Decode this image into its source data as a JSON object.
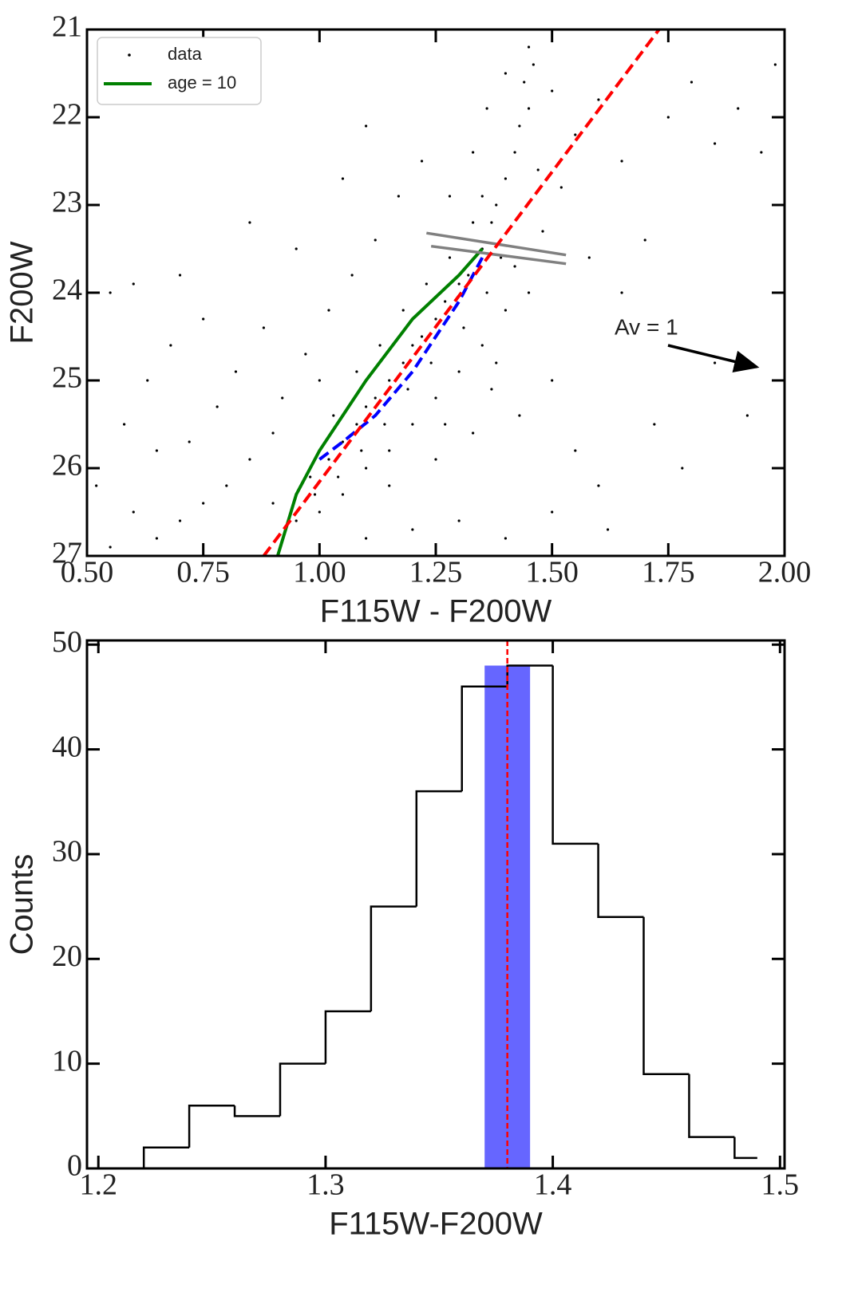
{
  "chart_data": [
    {
      "type": "scatter",
      "xlabel": "F115W - F200W",
      "ylabel": "F200W",
      "xlim": [
        0.5,
        2.0
      ],
      "ylim": [
        27,
        21
      ],
      "xticks": [
        {
          "value": 0.5,
          "label": "0.50"
        },
        {
          "value": 0.75,
          "label": "0.75"
        },
        {
          "value": 1.0,
          "label": "1.00"
        },
        {
          "value": 1.25,
          "label": "1.25"
        },
        {
          "value": 1.5,
          "label": "1.50"
        },
        {
          "value": 1.75,
          "label": "1.75"
        },
        {
          "value": 2.0,
          "label": "2.00"
        }
      ],
      "yticks": [
        21,
        22,
        23,
        24,
        25,
        26,
        27
      ],
      "series": [
        {
          "name": "data",
          "color": "#000000",
          "x": [
            0.98,
            1.02,
            1.05,
            1.08,
            1.1,
            1.12,
            1.15,
            1.18,
            1.2,
            1.22,
            1.25,
            1.27,
            1.3,
            1.32,
            1.35,
            1.37,
            1.38,
            1.4,
            1.42,
            1.43,
            1.45,
            1.44,
            1.46,
            0.9,
            0.95,
            1.0,
            1.05,
            1.1,
            1.15,
            1.2,
            1.25,
            1.3,
            1.35,
            1.4,
            1.45,
            1.5,
            1.55,
            1.6,
            1.48,
            1.52,
            0.85,
            0.8,
            0.75,
            0.7,
            0.65,
            0.6,
            0.55,
            0.52,
            0.58,
            0.63,
            0.68,
            0.72,
            0.78,
            0.82,
            0.88,
            0.92,
            0.97,
            1.02,
            1.07,
            1.12,
            1.17,
            1.22,
            1.28,
            1.33,
            1.36,
            1.4,
            1.45,
            1.5,
            1.55,
            1.6,
            1.65,
            1.7,
            1.75,
            1.8,
            1.85,
            1.9,
            1.95,
            1.98,
            1.72,
            1.78,
            1.85,
            1.92,
            1.65,
            1.58,
            1.62,
            1.5,
            1.4,
            1.3,
            1.2,
            1.1,
            1.03,
            1.08,
            1.13,
            1.18,
            1.23,
            1.28,
            1.33,
            1.38,
            1.43,
            1.33,
            1.25,
            1.15,
            0.55,
            0.6,
            0.7,
            0.75,
            0.85,
            0.95,
            1.05,
            1.1,
            0.65,
            0.9,
            1.0,
            1.27,
            1.37,
            1.42,
            1.47,
            1.35,
            1.31,
            1.36,
            1.39,
            1.24,
            1.19,
            1.14,
            1.09,
            1.04,
            0.99
          ],
          "y": [
            26.1,
            25.9,
            25.7,
            25.5,
            25.3,
            25.2,
            25.0,
            24.8,
            24.6,
            24.5,
            24.3,
            24.1,
            23.9,
            23.8,
            23.5,
            23.2,
            23.0,
            22.7,
            22.4,
            22.1,
            21.9,
            21.6,
            21.4,
            26.4,
            26.6,
            26.5,
            26.3,
            26.0,
            25.8,
            25.5,
            25.2,
            24.9,
            24.6,
            24.2,
            24.0,
            25.0,
            25.8,
            26.2,
            23.3,
            22.8,
            25.9,
            26.2,
            26.4,
            26.6,
            26.8,
            26.5,
            26.9,
            26.2,
            25.5,
            25.0,
            24.6,
            25.7,
            25.3,
            24.9,
            24.4,
            25.2,
            24.7,
            24.2,
            23.8,
            23.4,
            22.9,
            22.5,
            22.9,
            22.4,
            21.9,
            21.5,
            21.2,
            21.7,
            22.2,
            21.8,
            22.5,
            23.4,
            22.0,
            21.6,
            22.3,
            21.9,
            22.4,
            21.4,
            25.5,
            26.0,
            24.8,
            25.4,
            24.0,
            23.6,
            26.7,
            26.5,
            26.8,
            26.6,
            26.7,
            26.8,
            25.4,
            24.9,
            24.6,
            24.2,
            23.9,
            23.6,
            23.2,
            24.8,
            25.4,
            25.6,
            25.9,
            26.2,
            24.0,
            23.9,
            23.8,
            24.3,
            23.2,
            23.5,
            22.7,
            22.1,
            25.8,
            25.6,
            25.0,
            25.5,
            25.1,
            23.7,
            22.6,
            22.9,
            24.4,
            24.0,
            23.6,
            24.8,
            25.1,
            25.5,
            25.8,
            26.1,
            26.3
          ]
        },
        {
          "name": "age = 10",
          "color": "#008000",
          "line": true,
          "x": [
            0.91,
            0.95,
            1.0,
            1.1,
            1.2,
            1.3,
            1.35
          ],
          "y": [
            27,
            26.3,
            25.8,
            25.0,
            24.3,
            23.8,
            23.5
          ]
        }
      ],
      "lines": [
        {
          "color": "#808080",
          "x": [
            1.23,
            1.53
          ],
          "y": [
            23.32,
            23.57
          ]
        },
        {
          "color": "#808080",
          "x": [
            1.24,
            1.53
          ],
          "y": [
            23.47,
            23.67
          ]
        },
        {
          "color": "#0000ff",
          "dashed": true,
          "x": [
            1.0,
            1.05,
            1.12,
            1.2,
            1.25,
            1.3,
            1.35
          ],
          "y": [
            25.9,
            25.7,
            25.4,
            24.9,
            24.5,
            24.1,
            23.6
          ]
        },
        {
          "color": "#ff0000",
          "dashed": true,
          "x": [
            0.88,
            1.73
          ],
          "y": [
            27,
            21
          ]
        }
      ],
      "annotation": "Av = 1"
    },
    {
      "type": "histogram",
      "xlabel": "F115W-F200W",
      "ylabel": "Counts",
      "xlim": [
        1.195,
        1.502
      ],
      "ylim": [
        0,
        50.4
      ],
      "xticks": [
        1.2,
        1.3,
        1.4,
        1.5
      ],
      "yticks": [
        0,
        10,
        20,
        30,
        40,
        50
      ],
      "bins": [
        1.21,
        1.22,
        1.24,
        1.26,
        1.28,
        1.3,
        1.32,
        1.34,
        1.36,
        1.38,
        1.4,
        1.42,
        1.44,
        1.46,
        1.48,
        1.49
      ],
      "counts": [
        0,
        2,
        6,
        5,
        10,
        15,
        25,
        36,
        46,
        48,
        31,
        24,
        9,
        3,
        1
      ],
      "color": "#000000",
      "band": {
        "x": [
          1.37,
          1.39
        ],
        "height": 48,
        "color": "#6666ff"
      },
      "vline": 1.38,
      "vline_color": "#ff0000"
    }
  ]
}
